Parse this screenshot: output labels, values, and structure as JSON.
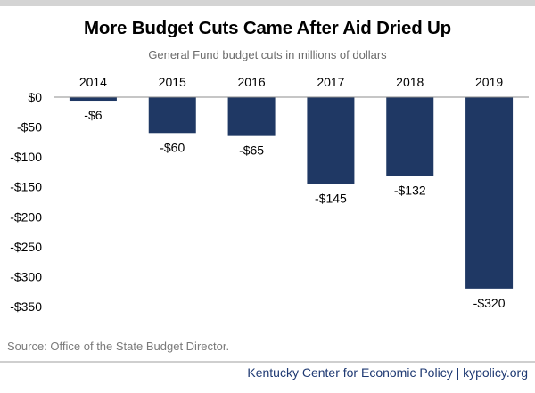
{
  "chart_data": {
    "type": "bar",
    "title": "More Budget Cuts Came After Aid Dried Up",
    "subtitle": "General Fund budget cuts in millions of dollars",
    "categories": [
      "2014",
      "2015",
      "2016",
      "2017",
      "2018",
      "2019"
    ],
    "values": [
      -6,
      -60,
      -65,
      -145,
      -132,
      -320
    ],
    "data_labels": [
      "-$6",
      "-$60",
      "-$65",
      "-$145",
      "-$132",
      "-$320"
    ],
    "ylim": [
      -350,
      0
    ],
    "y_ticks": [
      0,
      -50,
      -100,
      -150,
      -200,
      -250,
      -300,
      -350
    ],
    "y_tick_labels": [
      "$0",
      "-$50",
      "-$100",
      "-$150",
      "-$200",
      "-$250",
      "-$300",
      "-$350"
    ],
    "xlabel": "",
    "ylabel": "",
    "x_axis_position": "top",
    "grid": false,
    "legend": "none",
    "bar_color": "#1f3864"
  },
  "source": "Source: Office of the State Budget Director.",
  "footer": "Kentucky Center for Economic Policy | kypolicy.org",
  "colors": {
    "bar": "#1f3864",
    "footer_text": "#1f3a73",
    "top_band": "#d4d4d4"
  }
}
